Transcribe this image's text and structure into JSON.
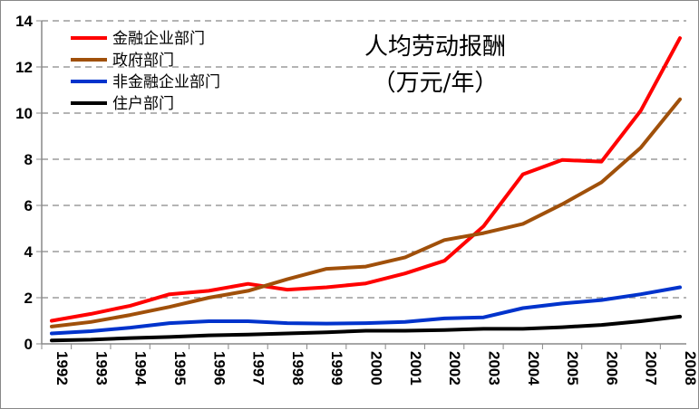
{
  "chart_data": {
    "type": "line",
    "title": "人均劳动报酬",
    "subtitle": "（万元/年）",
    "xlabel": "",
    "ylabel": "",
    "categories": [
      "1992",
      "1993",
      "1994",
      "1995",
      "1996",
      "1997",
      "1998",
      "1999",
      "2000",
      "2001",
      "2002",
      "2003",
      "2004",
      "2005",
      "2006",
      "2007",
      "2008"
    ],
    "ylim": [
      0,
      14
    ],
    "yticks": [
      0,
      2,
      4,
      6,
      8,
      10,
      12,
      14
    ],
    "grid": "horizontal dashed",
    "legend": "top-left",
    "series": [
      {
        "name": "金融企业部门",
        "color": "#ff0000",
        "values": [
          1.0,
          1.3,
          1.65,
          2.15,
          2.3,
          2.6,
          2.35,
          2.45,
          2.62,
          3.05,
          3.6,
          5.1,
          7.35,
          7.97,
          7.9,
          10.1,
          13.25
        ]
      },
      {
        "name": "政府部门",
        "color": "#a0500a",
        "values": [
          0.75,
          0.95,
          1.25,
          1.6,
          2.0,
          2.3,
          2.8,
          3.25,
          3.35,
          3.75,
          4.5,
          4.8,
          5.2,
          6.05,
          7.0,
          8.5,
          10.6
        ]
      },
      {
        "name": "非金融企业部门",
        "color": "#0033cc",
        "values": [
          0.45,
          0.55,
          0.7,
          0.9,
          0.98,
          0.98,
          0.9,
          0.88,
          0.9,
          0.95,
          1.1,
          1.15,
          1.55,
          1.75,
          1.9,
          2.15,
          2.45
        ]
      },
      {
        "name": "住户部门",
        "color": "#000000",
        "values": [
          0.15,
          0.18,
          0.25,
          0.3,
          0.37,
          0.4,
          0.45,
          0.5,
          0.57,
          0.57,
          0.6,
          0.65,
          0.65,
          0.72,
          0.82,
          0.98,
          1.18
        ]
      }
    ]
  }
}
